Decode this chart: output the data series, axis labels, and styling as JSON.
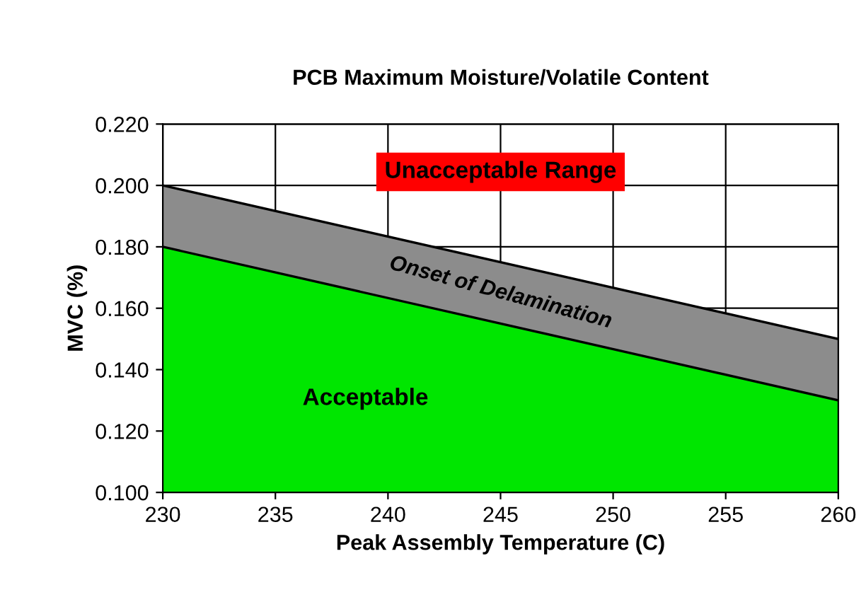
{
  "chart_data": {
    "type": "area",
    "title": "PCB Maximum Moisture/Volatile Content",
    "xlabel": "Peak Assembly Temperature (C)",
    "ylabel": "MVC (%)",
    "x": [
      230,
      260
    ],
    "series": [
      {
        "name": "Onset of Delamination",
        "color": "#8c8c8c",
        "values": [
          0.2,
          0.15
        ]
      },
      {
        "name": "Acceptable",
        "color": "#00e600",
        "values": [
          0.18,
          0.13
        ]
      }
    ],
    "annotations": [
      "Unacceptable Range"
    ],
    "xlim": [
      230,
      260
    ],
    "xticks": [
      230,
      235,
      240,
      245,
      250,
      255,
      260
    ],
    "ylim": [
      0.1,
      0.22
    ],
    "yticks": [
      {
        "value": 0.1,
        "label": "0.100"
      },
      {
        "value": 0.12,
        "label": "0.120"
      },
      {
        "value": 0.14,
        "label": "0.140"
      },
      {
        "value": 0.16,
        "label": "0.160"
      },
      {
        "value": 0.18,
        "label": "0.180"
      },
      {
        "value": 0.2,
        "label": "0.200"
      },
      {
        "value": 0.22,
        "label": "0.220"
      }
    ],
    "grid": true
  }
}
